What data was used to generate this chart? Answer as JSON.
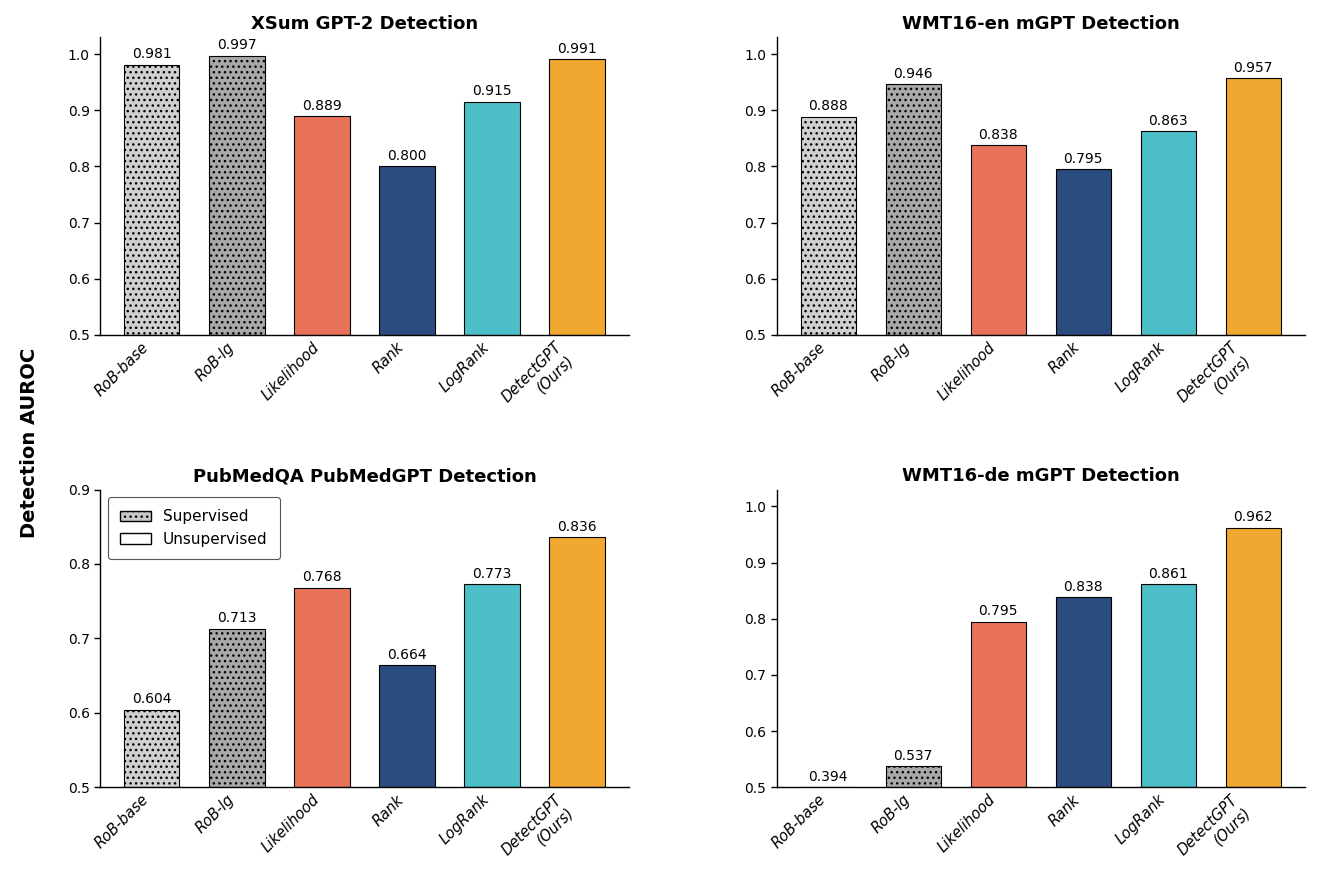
{
  "subplots": [
    {
      "title": "XSum GPT-2 Detection",
      "categories": [
        "RoB-base",
        "RoB-lg",
        "Likelihood",
        "Rank",
        "LogRank",
        "DetectGPT\n(Ours)"
      ],
      "values": [
        0.981,
        0.997,
        0.889,
        0.8,
        0.915,
        0.991
      ],
      "supervised": [
        true,
        true,
        false,
        false,
        false,
        false
      ],
      "ylim": [
        0.5,
        1.03
      ],
      "yticks": [
        0.5,
        0.6,
        0.7,
        0.8,
        0.9,
        1.0
      ]
    },
    {
      "title": "WMT16-en mGPT Detection",
      "categories": [
        "RoB-base",
        "RoB-lg",
        "Likelihood",
        "Rank",
        "LogRank",
        "DetectGPT\n(Ours)"
      ],
      "values": [
        0.888,
        0.946,
        0.838,
        0.795,
        0.863,
        0.957
      ],
      "supervised": [
        true,
        true,
        false,
        false,
        false,
        false
      ],
      "ylim": [
        0.5,
        1.03
      ],
      "yticks": [
        0.5,
        0.6,
        0.7,
        0.8,
        0.9,
        1.0
      ]
    },
    {
      "title": "PubMedQA PubMedGPT Detection",
      "categories": [
        "RoB-base",
        "RoB-lg",
        "Likelihood",
        "Rank",
        "LogRank",
        "DetectGPT\n(Ours)"
      ],
      "values": [
        0.604,
        0.713,
        0.768,
        0.664,
        0.773,
        0.836
      ],
      "supervised": [
        true,
        true,
        false,
        false,
        false,
        false
      ],
      "ylim": [
        0.5,
        0.9
      ],
      "yticks": [
        0.5,
        0.6,
        0.7,
        0.8,
        0.9
      ]
    },
    {
      "title": "WMT16-de mGPT Detection",
      "categories": [
        "RoB-base",
        "RoB-lg",
        "Likelihood",
        "Rank",
        "LogRank",
        "DetectGPT\n(Ours)"
      ],
      "values": [
        0.394,
        0.537,
        0.795,
        0.838,
        0.861,
        0.962
      ],
      "supervised": [
        true,
        true,
        false,
        false,
        false,
        false
      ],
      "ylim": [
        0.5,
        1.03
      ],
      "yticks": [
        0.5,
        0.6,
        0.7,
        0.8,
        0.9,
        1.0
      ]
    }
  ],
  "bar_colors_order": [
    "#d0d0d0",
    "#a8a8a8",
    "#E8735A",
    "#2B4C7E",
    "#4CBFC9",
    "#F0A830"
  ],
  "supervised_flags": [
    true,
    true,
    false,
    false,
    false,
    false
  ],
  "ylabel": "Detection AUROC",
  "title_fontsize": 13,
  "label_fontsize": 10.5,
  "tick_fontsize": 10,
  "bar_value_fontsize": 10,
  "legend_fontsize": 11,
  "background_color": "#ffffff"
}
